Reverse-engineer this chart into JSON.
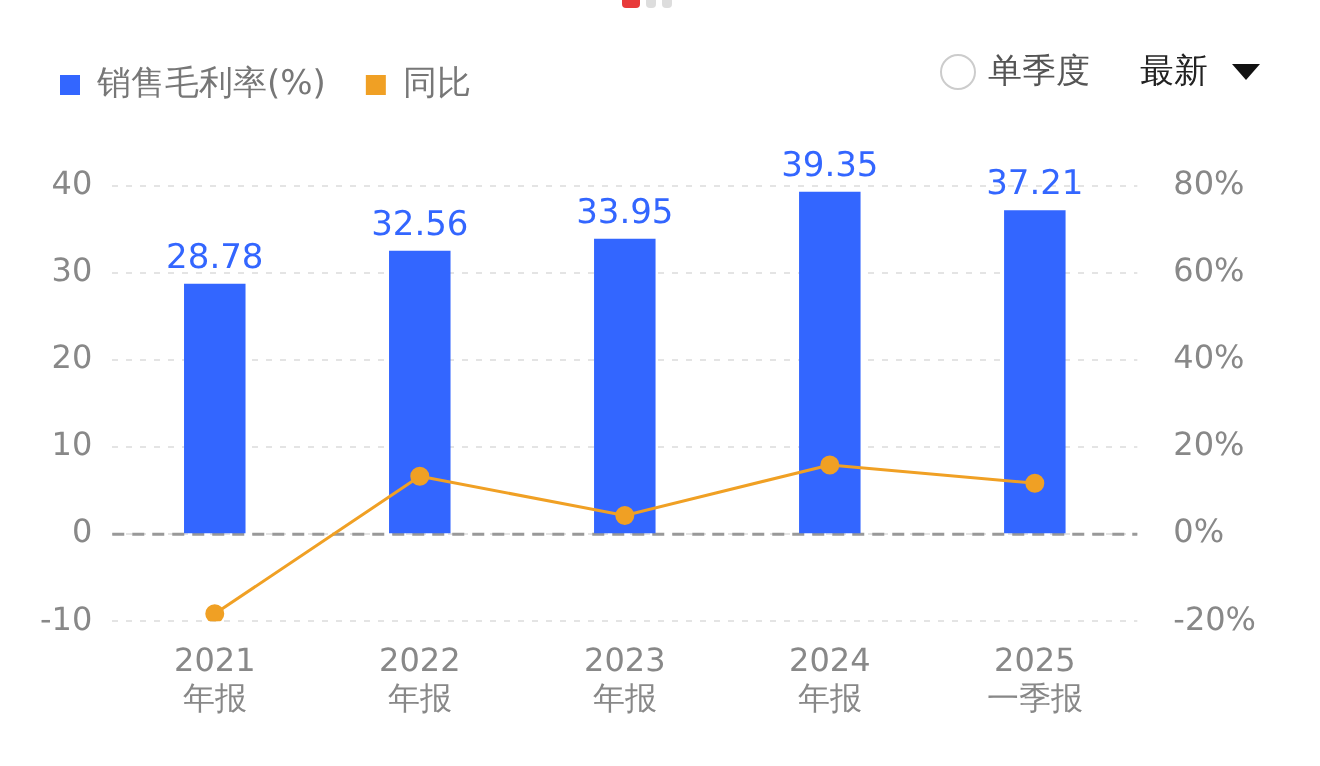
{
  "chart_data": {
    "type": "bar",
    "categories": [
      "2021\n年报",
      "2022\n年报",
      "2023\n年报",
      "2024\n年报",
      "2025\n一季报"
    ],
    "series": [
      {
        "name": "销售毛利率(%)",
        "color": "#3366ff",
        "values": [
          28.78,
          32.56,
          33.95,
          39.35,
          37.21
        ],
        "value_labels": [
          "28.78",
          "32.56",
          "33.95",
          "39.35",
          "37.21"
        ]
      },
      {
        "name": "同比",
        "type": "line",
        "axis": "y2",
        "color": "#f0a024",
        "marker": "circle",
        "values": [
          -18.3,
          13.3,
          4.3,
          15.9,
          11.7
        ]
      }
    ],
    "ylim": [
      -10,
      40
    ],
    "yticks": [
      -10,
      0,
      10,
      20,
      30,
      40
    ],
    "y2lim": [
      -20,
      80
    ],
    "y2ticks": [
      {
        "value": -20,
        "label": "-20%"
      },
      {
        "value": 0,
        "label": "0%"
      },
      {
        "value": 20,
        "label": "20%"
      },
      {
        "value": 40,
        "label": "40%"
      },
      {
        "value": 60,
        "label": "60%"
      },
      {
        "value": 80,
        "label": "80%"
      }
    ],
    "grid": "y",
    "legend": "top left",
    "ref_lines": [
      {
        "axis": "y",
        "value": 0,
        "color": "#999999",
        "line_style": "dashed"
      }
    ],
    "annotations": [
      "单季度",
      "最新"
    ]
  }
}
